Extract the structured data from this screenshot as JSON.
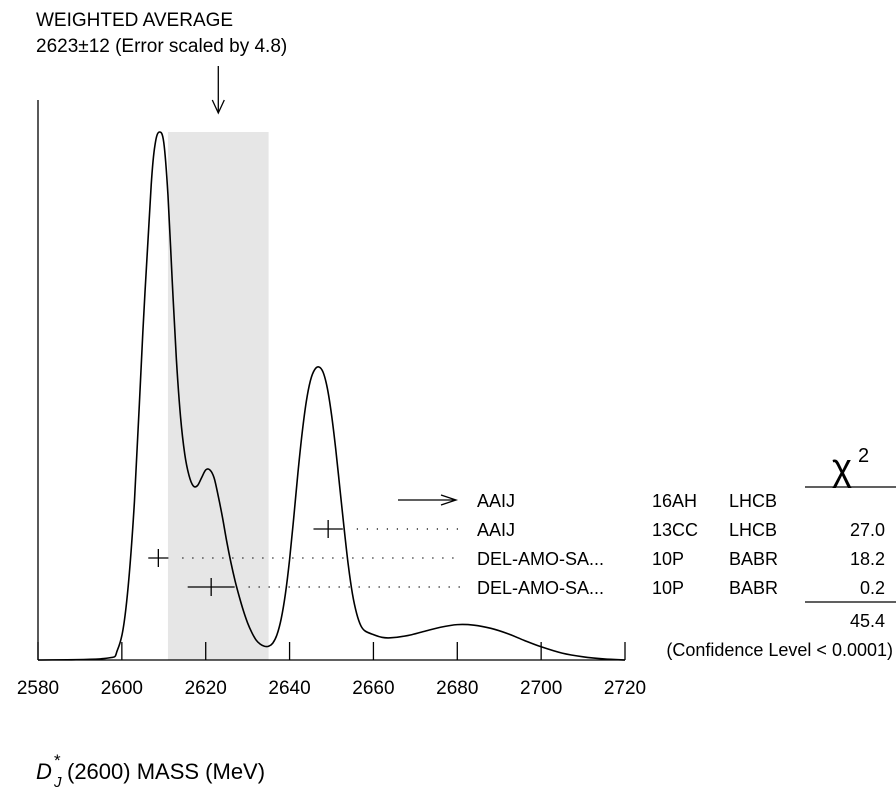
{
  "chart_data": {
    "type": "ideogram",
    "header": {
      "line1": "WEIGHTED AVERAGE",
      "line2": "2623±12 (Error scaled by 4.8)"
    },
    "weighted_average": {
      "value": 2623,
      "error": 12,
      "scale_factor": 4.8
    },
    "xlim": [
      2580,
      2720
    ],
    "x_ticks": [
      2580,
      2600,
      2620,
      2640,
      2660,
      2680,
      2700,
      2720
    ],
    "band": [
      2611,
      2635
    ],
    "xlabel": {
      "main": "D",
      "sup": "*",
      "sub": "J",
      "rest": "(2600) MASS (MeV)"
    },
    "curve": {
      "x": [
        2580,
        2596,
        2599,
        2601,
        2603,
        2605,
        2607,
        2608,
        2609,
        2610,
        2611,
        2612,
        2613,
        2614,
        2615,
        2616,
        2617,
        2618,
        2619,
        2620,
        2621,
        2622,
        2623,
        2624,
        2625,
        2626,
        2627,
        2628,
        2629,
        2630,
        2631,
        2632,
        2633,
        2634,
        2635,
        2636,
        2637,
        2638,
        2639,
        2640,
        2641,
        2642,
        2643,
        2644,
        2645,
        2646,
        2647,
        2648,
        2649,
        2650,
        2651,
        2652,
        2653,
        2654,
        2655,
        2656,
        2657,
        2658,
        2660,
        2662,
        2664,
        2668,
        2672,
        2676,
        2680,
        2684,
        2688,
        2692,
        2696,
        2700,
        2705,
        2710,
        2715,
        2720
      ],
      "y": [
        0,
        0.003,
        0.02,
        0.1,
        0.3,
        0.62,
        0.9,
        0.98,
        1.0,
        0.98,
        0.88,
        0.72,
        0.57,
        0.46,
        0.39,
        0.35,
        0.33,
        0.33,
        0.345,
        0.36,
        0.36,
        0.345,
        0.31,
        0.27,
        0.225,
        0.185,
        0.15,
        0.12,
        0.093,
        0.07,
        0.052,
        0.038,
        0.03,
        0.026,
        0.026,
        0.032,
        0.048,
        0.078,
        0.125,
        0.19,
        0.27,
        0.355,
        0.43,
        0.49,
        0.53,
        0.55,
        0.555,
        0.545,
        0.515,
        0.465,
        0.4,
        0.325,
        0.25,
        0.18,
        0.125,
        0.088,
        0.065,
        0.055,
        0.048,
        0.043,
        0.042,
        0.046,
        0.054,
        0.062,
        0.067,
        0.066,
        0.06,
        0.05,
        0.037,
        0.025,
        0.013,
        0.006,
        0.002,
        0
      ]
    },
    "measurements": [
      {
        "author": "AAIJ",
        "year": "16AH",
        "experiment": "LHCB",
        "chi2": "",
        "value": 2623,
        "error": null,
        "arrow": true
      },
      {
        "author": "AAIJ",
        "year": "13CC",
        "experiment": "LHCB",
        "chi2": "27.0",
        "value": 2649.2,
        "error": 3.5
      },
      {
        "author": "DEL-AMO-SA...",
        "year": "10P",
        "experiment": "BABR",
        "chi2": "18.2",
        "value": 2608.7,
        "error": 2.4
      },
      {
        "author": "DEL-AMO-SA...",
        "year": "10P",
        "experiment": "BABR",
        "chi2": "0.2",
        "value": 2621.3,
        "error": 5.6
      }
    ],
    "chi2_header": {
      "symbol": "χ",
      "power": "2"
    },
    "chi2_total": "45.4",
    "confidence_level": "(Confidence Level < 0.0001)"
  }
}
